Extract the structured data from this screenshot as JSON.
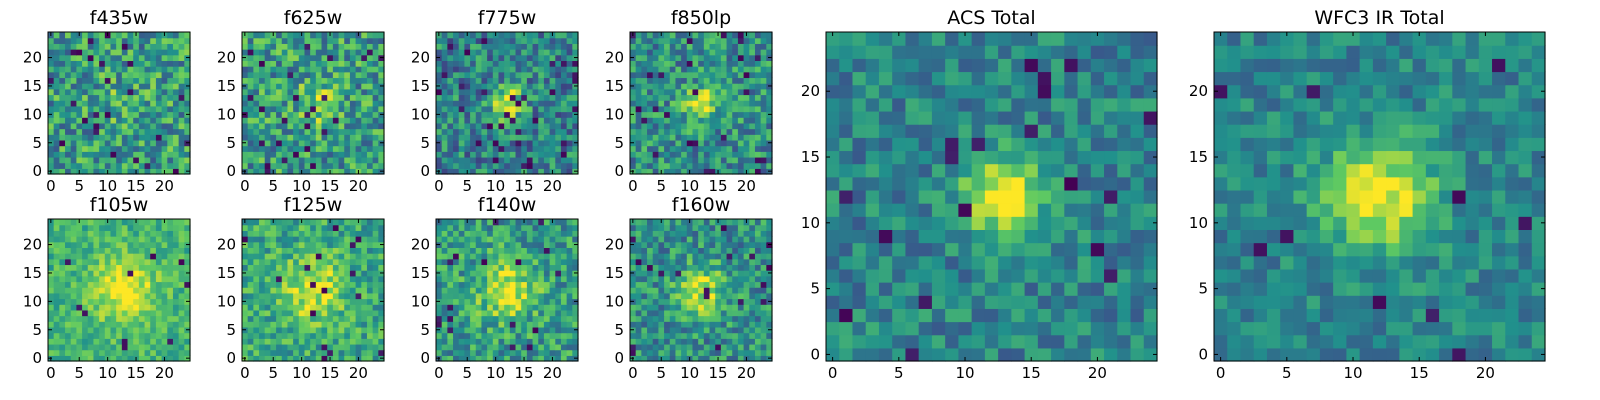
{
  "figure": {
    "description": "Grid of heatmap image cutouts of a source in HST filters",
    "colormap": [
      "#440154",
      "#3b528b",
      "#21918c",
      "#5ec962",
      "#fde725"
    ]
  },
  "chart_data": [
    {
      "type": "heatmap",
      "id": "f435w",
      "title": "f435w",
      "size": 25,
      "xlim": [
        0,
        24
      ],
      "ylim": [
        0,
        24
      ],
      "xticks": [
        0,
        5,
        10,
        15,
        20
      ],
      "yticks": [
        0,
        5,
        10,
        15,
        20
      ],
      "source_center": [
        12,
        12
      ],
      "peak_strength": 0.1,
      "blob_sigma": 3.0,
      "noise": 0.55,
      "base": 0.55,
      "dark_fraction": 0.03,
      "seed": 11,
      "xlabel": "",
      "ylabel": ""
    },
    {
      "type": "heatmap",
      "id": "f625w",
      "title": "f625w",
      "size": 25,
      "xlim": [
        0,
        24
      ],
      "ylim": [
        0,
        24
      ],
      "xticks": [
        0,
        5,
        10,
        15,
        20
      ],
      "yticks": [
        0,
        5,
        10,
        15,
        20
      ],
      "source_center": [
        13,
        12
      ],
      "peak_strength": 0.3,
      "blob_sigma": 2.5,
      "noise": 0.55,
      "base": 0.55,
      "dark_fraction": 0.035,
      "seed": 23,
      "xlabel": "",
      "ylabel": ""
    },
    {
      "type": "heatmap",
      "id": "f775w",
      "title": "f775w",
      "size": 25,
      "xlim": [
        0,
        24
      ],
      "ylim": [
        0,
        24
      ],
      "xticks": [
        0,
        5,
        10,
        15,
        20
      ],
      "yticks": [
        0,
        5,
        10,
        15,
        20
      ],
      "source_center": [
        12,
        12
      ],
      "peak_strength": 0.55,
      "blob_sigma": 2.0,
      "noise": 0.5,
      "base": 0.45,
      "dark_fraction": 0.05,
      "seed": 37,
      "xlabel": "",
      "ylabel": ""
    },
    {
      "type": "heatmap",
      "id": "f850lp",
      "title": "f850lp",
      "size": 25,
      "xlim": [
        0,
        24
      ],
      "ylim": [
        0,
        24
      ],
      "xticks": [
        0,
        5,
        10,
        15,
        20
      ],
      "yticks": [
        0,
        5,
        10,
        15,
        20
      ],
      "source_center": [
        12,
        12
      ],
      "peak_strength": 0.55,
      "blob_sigma": 2.0,
      "noise": 0.5,
      "base": 0.5,
      "dark_fraction": 0.04,
      "seed": 41,
      "xlabel": "",
      "ylabel": ""
    },
    {
      "type": "heatmap",
      "id": "f105w",
      "title": "f105w",
      "size": 25,
      "xlim": [
        0,
        24
      ],
      "ylim": [
        0,
        24
      ],
      "xticks": [
        0,
        5,
        10,
        15,
        20
      ],
      "yticks": [
        0,
        5,
        10,
        15,
        20
      ],
      "source_center": [
        13,
        12
      ],
      "peak_strength": 0.35,
      "blob_sigma": 4.0,
      "noise": 0.3,
      "base": 0.65,
      "dark_fraction": 0.015,
      "seed": 53,
      "xlabel": "",
      "ylabel": ""
    },
    {
      "type": "heatmap",
      "id": "f125w",
      "title": "f125w",
      "size": 25,
      "xlim": [
        0,
        24
      ],
      "ylim": [
        0,
        24
      ],
      "xticks": [
        0,
        5,
        10,
        15,
        20
      ],
      "yticks": [
        0,
        5,
        10,
        15,
        20
      ],
      "source_center": [
        12,
        12
      ],
      "peak_strength": 0.35,
      "blob_sigma": 4.0,
      "noise": 0.4,
      "base": 0.6,
      "dark_fraction": 0.02,
      "seed": 67,
      "xlabel": "",
      "ylabel": ""
    },
    {
      "type": "heatmap",
      "id": "f140w",
      "title": "f140w",
      "size": 25,
      "xlim": [
        0,
        24
      ],
      "ylim": [
        0,
        24
      ],
      "xticks": [
        0,
        5,
        10,
        15,
        20
      ],
      "yticks": [
        0,
        5,
        10,
        15,
        20
      ],
      "source_center": [
        12,
        12
      ],
      "peak_strength": 0.4,
      "blob_sigma": 3.5,
      "noise": 0.45,
      "base": 0.55,
      "dark_fraction": 0.025,
      "seed": 79,
      "xlabel": "",
      "ylabel": ""
    },
    {
      "type": "heatmap",
      "id": "f160w",
      "title": "f160w",
      "size": 25,
      "xlim": [
        0,
        24
      ],
      "ylim": [
        0,
        24
      ],
      "xticks": [
        0,
        5,
        10,
        15,
        20
      ],
      "yticks": [
        0,
        5,
        10,
        15,
        20
      ],
      "source_center": [
        12,
        12
      ],
      "peak_strength": 0.45,
      "blob_sigma": 3.0,
      "noise": 0.45,
      "base": 0.5,
      "dark_fraction": 0.025,
      "seed": 83,
      "xlabel": "",
      "ylabel": ""
    },
    {
      "type": "heatmap",
      "id": "acs-total",
      "title": "ACS Total",
      "size": 25,
      "xlim": [
        0,
        24
      ],
      "ylim": [
        0,
        24
      ],
      "xticks": [
        0,
        5,
        10,
        15,
        20
      ],
      "yticks": [
        0,
        5,
        10,
        15,
        20
      ],
      "source_center": [
        13,
        12
      ],
      "peak_strength": 0.6,
      "blob_sigma": 2.2,
      "noise": 0.35,
      "base": 0.45,
      "dark_fraction": 0.03,
      "seed": 97,
      "xlabel": "",
      "ylabel": ""
    },
    {
      "type": "heatmap",
      "id": "wfc3-ir-total",
      "title": "WFC3 IR Total",
      "size": 25,
      "xlim": [
        0,
        24
      ],
      "ylim": [
        0,
        24
      ],
      "xticks": [
        0,
        5,
        10,
        15,
        20
      ],
      "yticks": [
        0,
        5,
        10,
        15,
        20
      ],
      "source_center": [
        12,
        12
      ],
      "peak_strength": 0.55,
      "blob_sigma": 3.0,
      "noise": 0.3,
      "base": 0.45,
      "dark_fraction": 0.02,
      "seed": 101,
      "xlabel": "",
      "ylabel": ""
    }
  ]
}
